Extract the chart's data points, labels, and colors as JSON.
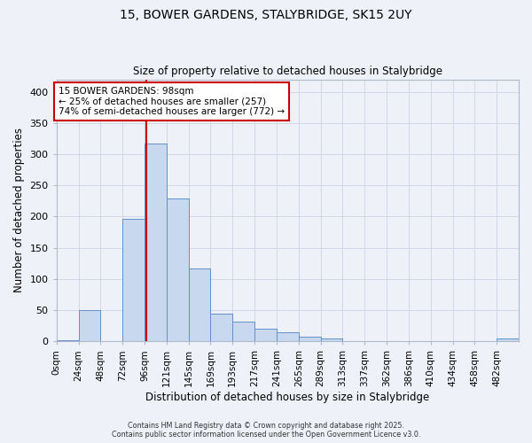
{
  "title1": "15, BOWER GARDENS, STALYBRIDGE, SK15 2UY",
  "title2": "Size of property relative to detached houses in Stalybridge",
  "xlabel": "Distribution of detached houses by size in Stalybridge",
  "ylabel": "Number of detached properties",
  "bin_edges": [
    0,
    24,
    48,
    72,
    96,
    120,
    144,
    168,
    192,
    216,
    240,
    264,
    288,
    312,
    336,
    360,
    384,
    408,
    432,
    456,
    480,
    504
  ],
  "bar_heights": [
    2,
    50,
    0,
    197,
    317,
    229,
    117,
    45,
    32,
    21,
    14,
    8,
    5,
    1,
    1,
    0,
    0,
    1,
    0,
    0,
    4
  ],
  "bar_color": "#c8d8ee",
  "bar_edge_color": "#6090c8",
  "vline_x": 98,
  "vline_color": "#cc0000",
  "annotation_text": "15 BOWER GARDENS: 98sqm\n← 25% of detached houses are smaller (257)\n74% of semi-detached houses are larger (772) →",
  "annotation_bbox_edgecolor": "#cc0000",
  "annotation_bbox_facecolor": "#ffffff",
  "ylim": [
    0,
    420
  ],
  "yticks": [
    0,
    50,
    100,
    150,
    200,
    250,
    300,
    350,
    400
  ],
  "xtick_labels": [
    "0sqm",
    "24sqm",
    "48sqm",
    "72sqm",
    "96sqm",
    "121sqm",
    "145sqm",
    "169sqm",
    "193sqm",
    "217sqm",
    "241sqm",
    "265sqm",
    "289sqm",
    "313sqm",
    "337sqm",
    "362sqm",
    "386sqm",
    "410sqm",
    "434sqm",
    "458sqm",
    "482sqm"
  ],
  "grid_color": "#d0d8e8",
  "bg_color": "#eef2f8",
  "footer1": "Contains HM Land Registry data © Crown copyright and database right 2025.",
  "footer2": "Contains public sector information licensed under the Open Government Licence v3.0."
}
